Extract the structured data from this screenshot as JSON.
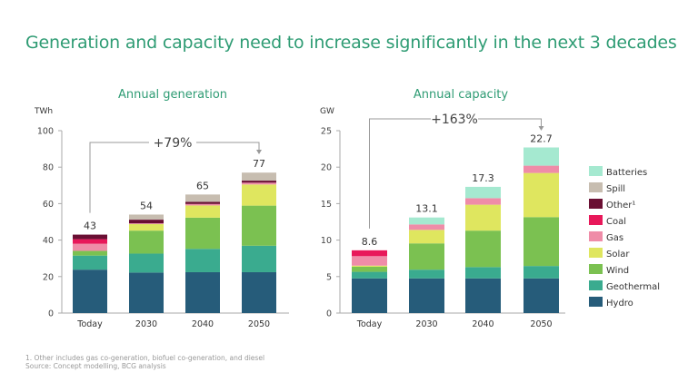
{
  "title": "Generation and capacity need to increase significantly in the next 3 decades",
  "footnote": "1.  Other includes gas co-generation, biofuel co-generation, and diesel",
  "source": "Source: Concept modelling, BCG analysis",
  "colors": {
    "Hydro": "#265c7a",
    "Geothermal": "#3aab8f",
    "Wind": "#7bc151",
    "Solar": "#dfe65f",
    "Gas": "#ef8ca8",
    "Coal": "#e8185a",
    "Other": "#6a0f33",
    "Spill": "#c7bdb0",
    "Batteries": "#a5e9d0"
  },
  "legend": [
    {
      "key": "Batteries",
      "label": "Batteries"
    },
    {
      "key": "Spill",
      "label": "Spill"
    },
    {
      "key": "Other",
      "label": "Other¹"
    },
    {
      "key": "Coal",
      "label": "Coal"
    },
    {
      "key": "Gas",
      "label": "Gas"
    },
    {
      "key": "Solar",
      "label": "Solar"
    },
    {
      "key": "Wind",
      "label": "Wind"
    },
    {
      "key": "Geothermal",
      "label": "Geothermal"
    },
    {
      "key": "Hydro",
      "label": "Hydro"
    }
  ],
  "chart_data": [
    {
      "type": "bar",
      "stacked": true,
      "title": "Annual generation",
      "ylabel": "TWh",
      "ylim": [
        0,
        100
      ],
      "yticks": [
        "0",
        "20",
        "40",
        "60",
        "80",
        "100"
      ],
      "categories": [
        "Today",
        "2030",
        "2040",
        "2050"
      ],
      "totals": [
        "43",
        "54",
        "65",
        "77"
      ],
      "annotation": "+79%",
      "series": [
        {
          "name": "Hydro",
          "values": [
            23.8,
            22.2,
            22.4,
            22.4
          ]
        },
        {
          "name": "Geothermal",
          "values": [
            7.7,
            10.4,
            12.8,
            14.5
          ]
        },
        {
          "name": "Wind",
          "values": [
            2.6,
            12.6,
            17.1,
            22
          ]
        },
        {
          "name": "Solar",
          "values": [
            0,
            3.6,
            6.7,
            11.6
          ]
        },
        {
          "name": "Gas",
          "values": [
            3.9,
            0.4,
            0.8,
            1
          ]
        },
        {
          "name": "Coal",
          "values": [
            2.5,
            0,
            0,
            0
          ]
        },
        {
          "name": "Other",
          "values": [
            2.5,
            2,
            1.2,
            1.1
          ]
        },
        {
          "name": "Spill",
          "values": [
            0,
            2.8,
            4,
            4.4
          ]
        }
      ]
    },
    {
      "type": "bar",
      "stacked": true,
      "title": "Annual capacity",
      "ylabel": "GW",
      "ylim": [
        0,
        25
      ],
      "yticks": [
        "0",
        "5",
        "10",
        "15",
        "20",
        "25"
      ],
      "categories": [
        "Today",
        "2030",
        "2040",
        "2050"
      ],
      "totals": [
        "8.6",
        "13.1",
        "17.3",
        "22.7"
      ],
      "annotation": "+163%",
      "series": [
        {
          "name": "Hydro",
          "values": [
            4.75,
            4.75,
            4.75,
            4.75
          ]
        },
        {
          "name": "Geothermal",
          "values": [
            0.9,
            1.2,
            1.55,
            1.7
          ]
        },
        {
          "name": "Wind",
          "values": [
            0.7,
            3.6,
            5,
            6.7
          ]
        },
        {
          "name": "Solar",
          "values": [
            0.15,
            1.85,
            3.55,
            6.05
          ]
        },
        {
          "name": "Gas",
          "values": [
            1.3,
            0.75,
            0.9,
            1
          ]
        },
        {
          "name": "Coal",
          "values": [
            0.8,
            0,
            0,
            0
          ]
        },
        {
          "name": "Batteries",
          "values": [
            0,
            0.95,
            1.55,
            2.5
          ]
        }
      ]
    }
  ]
}
